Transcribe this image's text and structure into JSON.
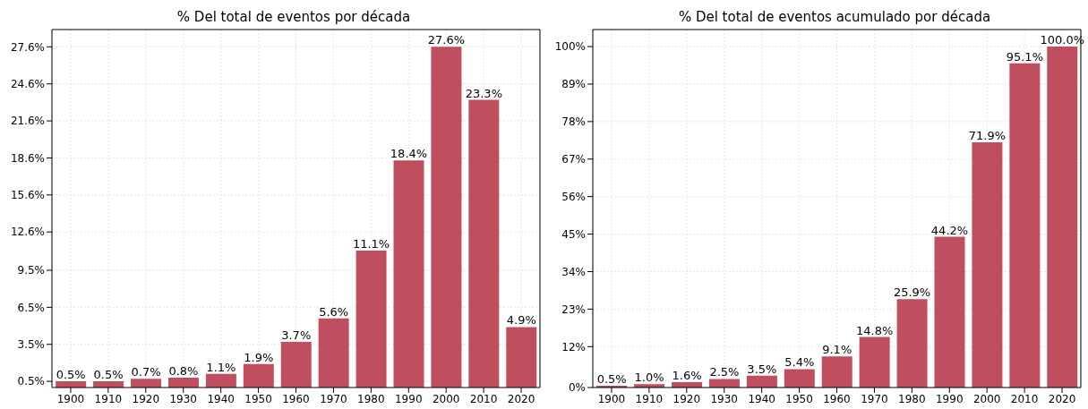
{
  "chart_data": [
    {
      "type": "bar",
      "title": "% Del total de eventos por década",
      "categories": [
        "1900",
        "1910",
        "1920",
        "1930",
        "1940",
        "1950",
        "1960",
        "1970",
        "1980",
        "1990",
        "2000",
        "2010",
        "2020"
      ],
      "values": [
        0.5,
        0.5,
        0.7,
        0.8,
        1.1,
        1.9,
        3.7,
        5.6,
        11.1,
        18.4,
        27.6,
        23.3,
        4.9
      ],
      "value_labels": [
        "0.5%",
        "0.5%",
        "0.7%",
        "0.8%",
        "1.1%",
        "1.9%",
        "3.7%",
        "5.6%",
        "11.1%",
        "18.4%",
        "27.6%",
        "23.3%",
        "4.9%"
      ],
      "color": "#bc4656",
      "ylim": [
        0,
        29
      ],
      "yticks": [
        {
          "value": 0.5,
          "label": "0.5%"
        },
        {
          "value": 3.5,
          "label": "3.5%"
        },
        {
          "value": 6.5,
          "label": "6.5%"
        },
        {
          "value": 9.5,
          "label": "9.5%"
        },
        {
          "value": 12.6,
          "label": "12.6%"
        },
        {
          "value": 15.6,
          "label": "15.6%"
        },
        {
          "value": 18.6,
          "label": "18.6%"
        },
        {
          "value": 21.6,
          "label": "21.6%"
        },
        {
          "value": 24.6,
          "label": "24.6%"
        },
        {
          "value": 27.6,
          "label": "27.6%"
        }
      ],
      "grid": true,
      "legend": false
    },
    {
      "type": "bar",
      "title": "% Del total de eventos acumulado por década",
      "categories": [
        "1900",
        "1910",
        "1920",
        "1930",
        "1940",
        "1950",
        "1960",
        "1970",
        "1980",
        "1990",
        "2000",
        "2010",
        "2020"
      ],
      "values": [
        0.5,
        1.0,
        1.6,
        2.5,
        3.5,
        5.4,
        9.1,
        14.8,
        25.9,
        44.2,
        71.9,
        95.1,
        100.0
      ],
      "value_labels": [
        "0.5%",
        "1.0%",
        "1.6%",
        "2.5%",
        "3.5%",
        "5.4%",
        "9.1%",
        "14.8%",
        "25.9%",
        "44.2%",
        "71.9%",
        "95.1%",
        "100.0%"
      ],
      "color": "#bc4656",
      "ylim": [
        0,
        105
      ],
      "yticks": [
        {
          "value": 0,
          "label": "0%"
        },
        {
          "value": 12,
          "label": "12%"
        },
        {
          "value": 23,
          "label": "23%"
        },
        {
          "value": 34,
          "label": "34%"
        },
        {
          "value": 45,
          "label": "45%"
        },
        {
          "value": 56,
          "label": "56%"
        },
        {
          "value": 67,
          "label": "67%"
        },
        {
          "value": 78,
          "label": "78%"
        },
        {
          "value": 89,
          "label": "89%"
        },
        {
          "value": 100,
          "label": "100%"
        }
      ],
      "grid": true,
      "legend": false
    }
  ]
}
